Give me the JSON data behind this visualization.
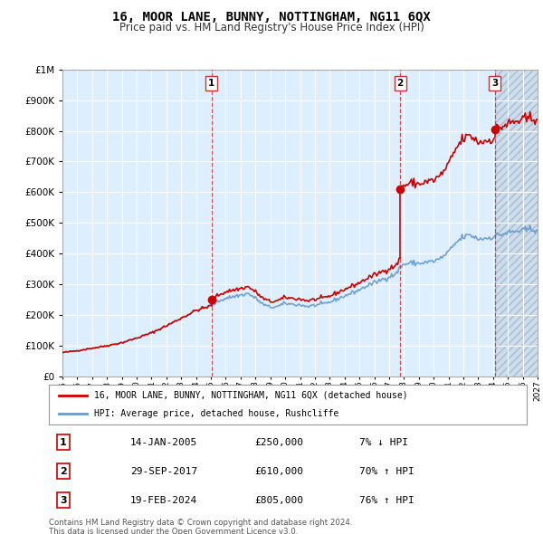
{
  "title": "16, MOOR LANE, BUNNY, NOTTINGHAM, NG11 6QX",
  "subtitle": "Price paid vs. HM Land Registry's House Price Index (HPI)",
  "legend_line1": "16, MOOR LANE, BUNNY, NOTTINGHAM, NG11 6QX (detached house)",
  "legend_line2": "HPI: Average price, detached house, Rushcliffe",
  "footer1": "Contains HM Land Registry data © Crown copyright and database right 2024.",
  "footer2": "This data is licensed under the Open Government Licence v3.0.",
  "sales": [
    {
      "num": 1,
      "date": "14-JAN-2005",
      "price": 250000,
      "pct": "7%",
      "dir": "↓",
      "year": 2005.04
    },
    {
      "num": 2,
      "date": "29-SEP-2017",
      "price": 610000,
      "pct": "70%",
      "dir": "↑",
      "year": 2017.75
    },
    {
      "num": 3,
      "date": "19-FEB-2024",
      "price": 805000,
      "pct": "76%",
      "dir": "↑",
      "year": 2024.13
    }
  ],
  "xmin": 1995.0,
  "xmax": 2027.0,
  "ymin": 0,
  "ymax": 1000000,
  "red_color": "#cc0000",
  "blue_color": "#6699cc",
  "bg_plot_color": "#ddeeff",
  "bg_color": "#ffffff",
  "grid_color": "#ffffff",
  "future_hatch_color": "#bbccdd"
}
